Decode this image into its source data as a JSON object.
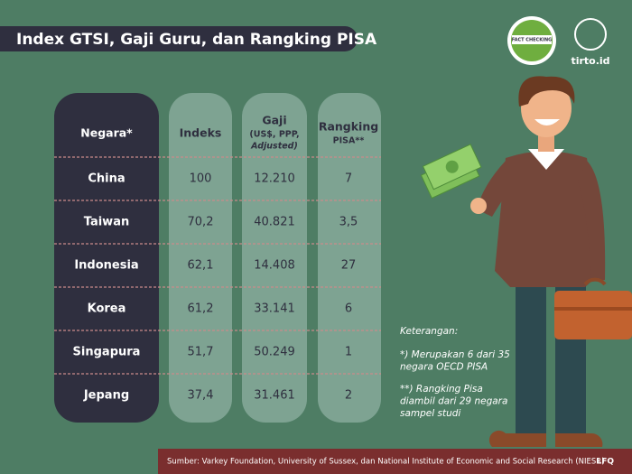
{
  "header": {
    "title": "Index GTSI, Gaji Guru, dan Rangking PISA",
    "badge": "FACT CHECKING",
    "logo": "tirto.id"
  },
  "table": {
    "columns": [
      [
        "Negara*"
      ],
      [
        "Indeks"
      ],
      [
        "Gaji",
        "(US$, PPP,",
        "Adjusted)"
      ],
      [
        "Rangking",
        "PISA**"
      ]
    ],
    "rows": [
      [
        "China",
        "100",
        "12.210",
        "7"
      ],
      [
        "Taiwan",
        "70,2",
        "40.821",
        "3,5"
      ],
      [
        "Indonesia",
        "62,1",
        "14.408",
        "27"
      ],
      [
        "Korea",
        "61,2",
        "33.141",
        "6"
      ],
      [
        "Singapura",
        "51,7",
        "50.249",
        "1"
      ],
      [
        "Jepang",
        "37,4",
        "31.461",
        "2"
      ]
    ]
  },
  "notes": {
    "title": "Keterangan:",
    "items": [
      [
        "*) Merupakan 6 dari 35",
        "negara OECD PISA"
      ],
      [
        "**) Rangking Pisa",
        "diambil dari 29 negara",
        "sampel studi"
      ]
    ]
  },
  "footer": {
    "source": "Sumber: Varkey Foundation, University of Sussex, dan National Institute of Economic and Social Research (NIESR)",
    "code": "LFQ"
  }
}
